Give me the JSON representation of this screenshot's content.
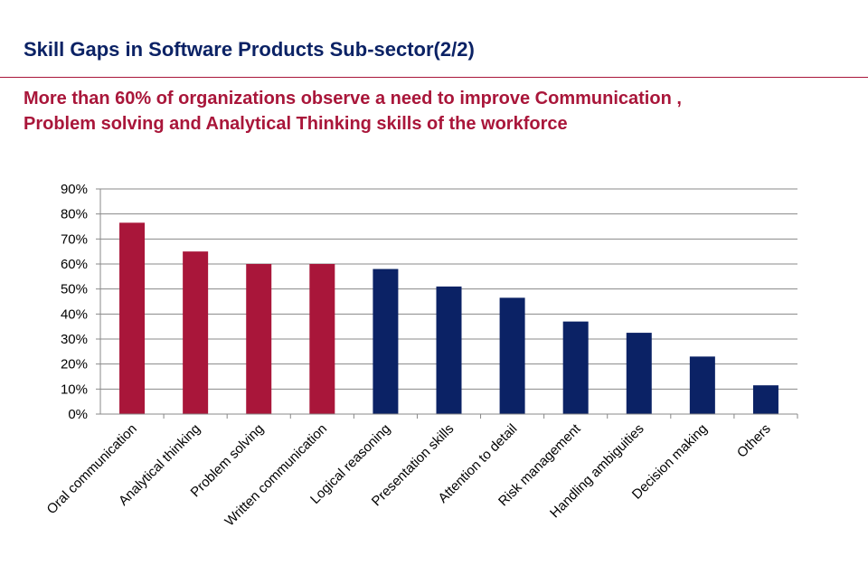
{
  "slide": {
    "title": "Skill Gaps in Software Products Sub-sector(2/2)",
    "subtitle": "More than 60%  of organizations observe a need to improve Communication ,\nProblem solving  and Analytical Thinking skills of the workforce"
  },
  "colors": {
    "title": "#0b2265",
    "accent": "#a9163a",
    "highlight_bar": "#a9163a",
    "regular_bar": "#0b2265",
    "grid": "#888888"
  },
  "chart_data": {
    "type": "bar",
    "title": "",
    "xlabel": "",
    "ylabel": "",
    "ylim": [
      0,
      90
    ],
    "yticks": [
      0,
      10,
      20,
      30,
      40,
      50,
      60,
      70,
      80,
      90
    ],
    "ytick_labels": [
      "0%",
      "10%",
      "20%",
      "30%",
      "40%",
      "50%",
      "60%",
      "70%",
      "80%",
      "90%"
    ],
    "grid": true,
    "legend": "none",
    "categories": [
      "Oral communication",
      "Analytical thinking",
      "Problem solving",
      "Written communication",
      "Logical reasoning",
      "Presentation skills",
      "Attention to detail",
      "Risk management",
      "Handling ambiguities",
      "Decision making",
      "Others"
    ],
    "values": [
      76.5,
      65,
      60,
      60,
      58,
      51,
      46.5,
      37,
      32.5,
      23,
      11.5
    ],
    "highlighted": [
      true,
      true,
      true,
      true,
      false,
      false,
      false,
      false,
      false,
      false,
      false
    ]
  }
}
